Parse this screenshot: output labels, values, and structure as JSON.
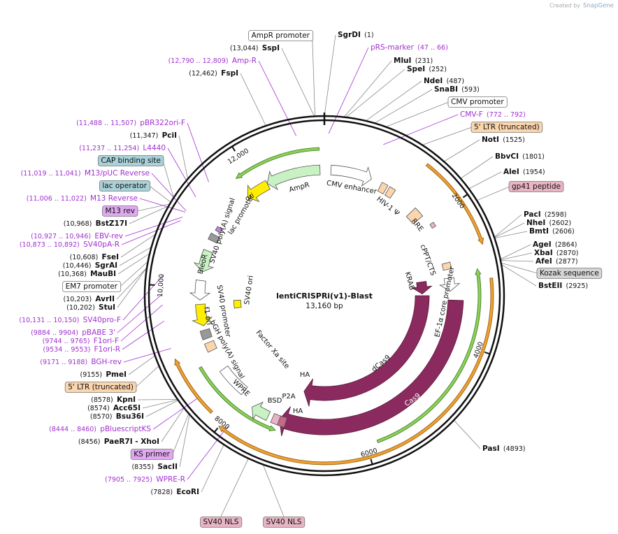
{
  "credit": {
    "prefix": "Created by",
    "brand": "SnapGene"
  },
  "map": {
    "name": "lentiCRISPRi(v1)-Blast",
    "size": {
      "value": 13160,
      "label": "13,160 bp"
    },
    "ruler_ticks": [
      2000,
      4000,
      6000,
      8000,
      {
        "value": 10000,
        "label": "10,000"
      },
      {
        "value": 12000,
        "label": "12,000"
      }
    ]
  },
  "labels": [
    {
      "name": "SgrDI",
      "position": "(1)"
    },
    {
      "name": "pRS-marker",
      "position": "(47 .. 66)"
    },
    {
      "name": "MluI",
      "position": "(231)"
    },
    {
      "name": "SpeI",
      "position": "(252)"
    },
    {
      "name": "NdeI",
      "position": "(487)"
    },
    {
      "name": "SnaBI",
      "position": "(593)"
    },
    {
      "name": "CMV promoter"
    },
    {
      "name": "CMV-F",
      "position": "(772 .. 792)"
    },
    {
      "name": "5' LTR (truncated)"
    },
    {
      "name": "NotI",
      "position": "(1525)"
    },
    {
      "name": "BbvCI",
      "position": "(1801)"
    },
    {
      "name": "AleI",
      "position": "(1954)"
    },
    {
      "name": "gp41 peptide"
    },
    {
      "name": "PacI",
      "position": "(2598)"
    },
    {
      "name": "NheI",
      "position": "(2602)"
    },
    {
      "name": "BmtI",
      "position": "(2606)"
    },
    {
      "name": "AgeI",
      "position": "(2864)"
    },
    {
      "name": "XbaI",
      "position": "(2870)"
    },
    {
      "name": "AfeI",
      "position": "(2877)"
    },
    {
      "name": "Kozak sequence"
    },
    {
      "name": "BstEII",
      "position": "(2925)"
    },
    {
      "name": "PasI",
      "position": "(4893)"
    },
    {
      "name": "AmpR promoter"
    },
    {
      "name": "SspI",
      "position": "(13,044)"
    },
    {
      "name": "Amp-R",
      "position": "(12,790 .. 12,809)"
    },
    {
      "name": "FspI",
      "position": "(12,462)"
    },
    {
      "name": "pBR322ori-F",
      "position": "(11,488 .. 11,507)"
    },
    {
      "name": "PciI",
      "position": "(11,347)"
    },
    {
      "name": "L4440",
      "position": "(11,237 .. 11,254)"
    },
    {
      "name": "CAP binding site"
    },
    {
      "name": "M13/pUC Reverse",
      "position": "(11,019 .. 11,041)"
    },
    {
      "name": "lac operator"
    },
    {
      "name": "M13 Reverse",
      "position": "(11,006 .. 11,022)"
    },
    {
      "name": "M13 rev"
    },
    {
      "name": "BstZ17I",
      "position": "(10,968)"
    },
    {
      "name": "EBV-rev",
      "position": "(10,927 .. 10,946)"
    },
    {
      "name": "SV40pA-R",
      "position": "(10,873 .. 10,892)"
    },
    {
      "name": "FseI",
      "position": "(10,608)"
    },
    {
      "name": "SgrAI",
      "position": "(10,446)"
    },
    {
      "name": "MauBI",
      "position": "(10,368)"
    },
    {
      "name": "EM7 promoter"
    },
    {
      "name": "AvrII",
      "position": "(10,203)"
    },
    {
      "name": "StuI",
      "position": "(10,202)"
    },
    {
      "name": "SV40pro-F",
      "position": "(10,131 .. 10,150)"
    },
    {
      "name": "pBABE 3'",
      "position": "(9884 .. 9904)"
    },
    {
      "name": "F1ori-F",
      "position": "(9744 .. 9765)"
    },
    {
      "name": "F1ori-R",
      "position": "(9534 .. 9553)"
    },
    {
      "name": "BGH-rev",
      "position": "(9171 .. 9188)"
    },
    {
      "name": "PmeI",
      "position": "(9155)"
    },
    {
      "name": "5' LTR (truncated)"
    },
    {
      "name": "KpnI",
      "position": "(8578)"
    },
    {
      "name": "Acc65I",
      "position": "(8574)"
    },
    {
      "name": "Bsu36I",
      "position": "(8570)"
    },
    {
      "name": "pBluescriptKS",
      "position": "(8444 .. 8460)"
    },
    {
      "name": "PaeR7I - XhoI",
      "position": "(8456)"
    },
    {
      "name": "KS primer"
    },
    {
      "name": "SacII",
      "position": "(8355)"
    },
    {
      "name": "WPRE-R",
      "position": "(7905 .. 7925)"
    },
    {
      "name": "EcoRI",
      "position": "(7828)"
    },
    {
      "name": "SV40 NLS"
    },
    {
      "name": "SV40 NLS"
    }
  ],
  "features": [
    "AmpR",
    "CMV enhancer",
    "HIV-1 Ψ",
    "RRE",
    "cPPT/CTS",
    "EF-1α core promoter",
    "KRAB",
    "dCas9",
    "Cas9",
    "HA",
    "P2A",
    "BSD",
    "HA",
    "WPRE",
    "Factor Xa site",
    "bGH poly(A) signal",
    "f1 ori",
    "SV40 promoter",
    "BleoR",
    "SV40 ori",
    "SV40 poly(A) signal",
    "lac promoter",
    "ori"
  ]
}
